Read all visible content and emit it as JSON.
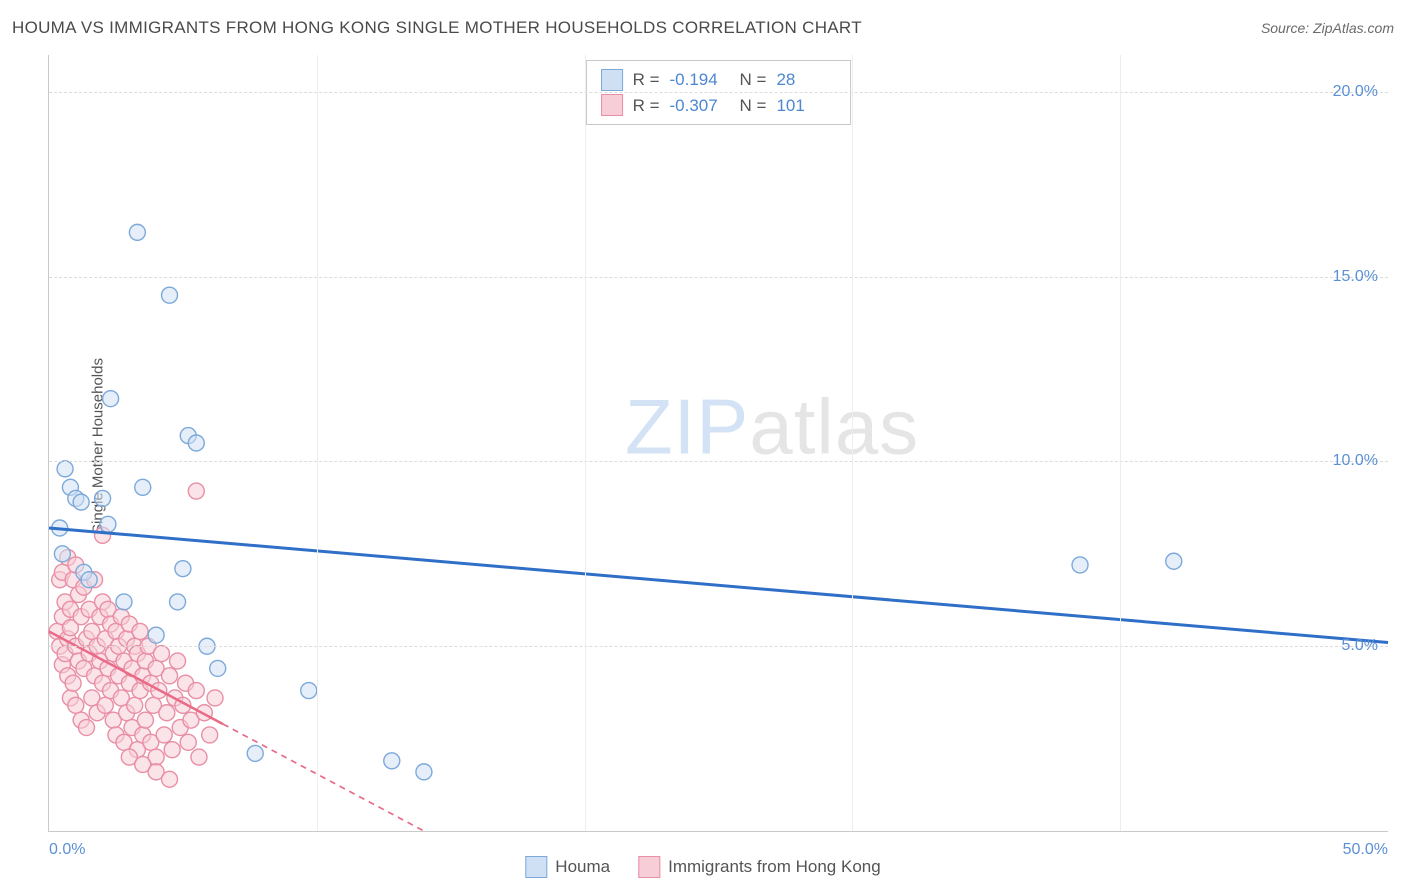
{
  "title": "HOUMA VS IMMIGRANTS FROM HONG KONG SINGLE MOTHER HOUSEHOLDS CORRELATION CHART",
  "source": "Source: ZipAtlas.com",
  "ylabel": "Single Mother Households",
  "watermark_a": "ZIP",
  "watermark_b": "atlas",
  "chart": {
    "type": "scatter",
    "xlim": [
      0,
      50
    ],
    "ylim": [
      0,
      21
    ],
    "yticks": [
      {
        "v": 5,
        "label": "5.0%"
      },
      {
        "v": 10,
        "label": "10.0%"
      },
      {
        "v": 15,
        "label": "15.0%"
      },
      {
        "v": 20,
        "label": "20.0%"
      }
    ],
    "xticks": [
      {
        "v": 0,
        "label": "0.0%",
        "align": "left"
      },
      {
        "v": 50,
        "label": "50.0%",
        "align": "right"
      }
    ],
    "vgrid_x": [
      10,
      20,
      30,
      40
    ],
    "grid_color": "#dcdcdc",
    "background_color": "#ffffff",
    "marker_radius": 8,
    "marker_stroke_width": 1.4,
    "series": [
      {
        "name": "Houma",
        "fill": "#cfe0f4",
        "stroke": "#7da9da",
        "fill_opacity": 0.55,
        "R": "-0.194",
        "N": "28",
        "trend": {
          "x1": 0,
          "y1": 8.2,
          "x2": 50,
          "y2": 5.1,
          "color": "#2f6fc7",
          "width": 3,
          "dash": "none",
          "solid_until_x": 50
        },
        "points": [
          [
            0.4,
            8.2
          ],
          [
            0.5,
            7.5
          ],
          [
            0.6,
            9.8
          ],
          [
            0.8,
            9.3
          ],
          [
            1.0,
            9.0
          ],
          [
            1.2,
            8.9
          ],
          [
            1.3,
            7.0
          ],
          [
            1.5,
            6.8
          ],
          [
            2.0,
            9.0
          ],
          [
            2.2,
            8.3
          ],
          [
            2.3,
            11.7
          ],
          [
            2.8,
            6.2
          ],
          [
            3.3,
            16.2
          ],
          [
            3.5,
            9.3
          ],
          [
            4.0,
            5.3
          ],
          [
            4.5,
            14.5
          ],
          [
            4.8,
            6.2
          ],
          [
            5.0,
            7.1
          ],
          [
            5.2,
            10.7
          ],
          [
            5.5,
            10.5
          ],
          [
            5.9,
            5.0
          ],
          [
            6.3,
            4.4
          ],
          [
            7.7,
            2.1
          ],
          [
            9.7,
            3.8
          ],
          [
            12.8,
            1.9
          ],
          [
            14.0,
            1.6
          ],
          [
            38.5,
            7.2
          ],
          [
            42.0,
            7.3
          ]
        ]
      },
      {
        "name": "Immigrants from Hong Kong",
        "fill": "#f7cdd7",
        "stroke": "#e88fa5",
        "fill_opacity": 0.55,
        "R": "-0.307",
        "N": "101",
        "trend": {
          "x1": 0,
          "y1": 5.4,
          "x2": 14,
          "y2": 0.0,
          "color": "#e86b88",
          "width": 2.5,
          "dash": "6,5",
          "solid_until_x": 6.5
        },
        "points": [
          [
            0.3,
            5.4
          ],
          [
            0.4,
            5.0
          ],
          [
            0.4,
            6.8
          ],
          [
            0.5,
            7.0
          ],
          [
            0.5,
            5.8
          ],
          [
            0.5,
            4.5
          ],
          [
            0.6,
            6.2
          ],
          [
            0.6,
            4.8
          ],
          [
            0.7,
            7.4
          ],
          [
            0.7,
            5.2
          ],
          [
            0.7,
            4.2
          ],
          [
            0.8,
            6.0
          ],
          [
            0.8,
            3.6
          ],
          [
            0.8,
            5.5
          ],
          [
            0.9,
            6.8
          ],
          [
            0.9,
            4.0
          ],
          [
            1.0,
            5.0
          ],
          [
            1.0,
            7.2
          ],
          [
            1.0,
            3.4
          ],
          [
            1.1,
            4.6
          ],
          [
            1.1,
            6.4
          ],
          [
            1.2,
            5.8
          ],
          [
            1.2,
            3.0
          ],
          [
            1.3,
            4.4
          ],
          [
            1.3,
            6.6
          ],
          [
            1.4,
            5.2
          ],
          [
            1.4,
            2.8
          ],
          [
            1.5,
            4.8
          ],
          [
            1.5,
            6.0
          ],
          [
            1.6,
            3.6
          ],
          [
            1.6,
            5.4
          ],
          [
            1.7,
            4.2
          ],
          [
            1.7,
            6.8
          ],
          [
            1.8,
            5.0
          ],
          [
            1.8,
            3.2
          ],
          [
            1.9,
            4.6
          ],
          [
            1.9,
            5.8
          ],
          [
            2.0,
            4.0
          ],
          [
            2.0,
            6.2
          ],
          [
            2.1,
            3.4
          ],
          [
            2.1,
            5.2
          ],
          [
            2.2,
            4.4
          ],
          [
            2.2,
            6.0
          ],
          [
            2.3,
            3.8
          ],
          [
            2.3,
            5.6
          ],
          [
            2.4,
            3.0
          ],
          [
            2.4,
            4.8
          ],
          [
            2.5,
            5.4
          ],
          [
            2.5,
            2.6
          ],
          [
            2.6,
            4.2
          ],
          [
            2.6,
            5.0
          ],
          [
            2.7,
            3.6
          ],
          [
            2.7,
            5.8
          ],
          [
            2.8,
            4.6
          ],
          [
            2.8,
            2.4
          ],
          [
            2.9,
            5.2
          ],
          [
            2.9,
            3.2
          ],
          [
            3.0,
            4.0
          ],
          [
            3.0,
            5.6
          ],
          [
            3.1,
            2.8
          ],
          [
            3.1,
            4.4
          ],
          [
            3.2,
            5.0
          ],
          [
            3.2,
            3.4
          ],
          [
            3.3,
            4.8
          ],
          [
            3.3,
            2.2
          ],
          [
            3.4,
            3.8
          ],
          [
            3.4,
            5.4
          ],
          [
            3.5,
            4.2
          ],
          [
            3.5,
            2.6
          ],
          [
            3.6,
            4.6
          ],
          [
            3.6,
            3.0
          ],
          [
            3.7,
            5.0
          ],
          [
            3.8,
            2.4
          ],
          [
            3.8,
            4.0
          ],
          [
            3.9,
            3.4
          ],
          [
            4.0,
            4.4
          ],
          [
            4.0,
            2.0
          ],
          [
            4.1,
            3.8
          ],
          [
            4.2,
            4.8
          ],
          [
            4.3,
            2.6
          ],
          [
            4.4,
            3.2
          ],
          [
            4.5,
            4.2
          ],
          [
            4.6,
            2.2
          ],
          [
            4.7,
            3.6
          ],
          [
            4.8,
            4.6
          ],
          [
            4.9,
            2.8
          ],
          [
            5.0,
            3.4
          ],
          [
            5.1,
            4.0
          ],
          [
            5.2,
            2.4
          ],
          [
            5.3,
            3.0
          ],
          [
            5.5,
            3.8
          ],
          [
            5.6,
            2.0
          ],
          [
            5.8,
            3.2
          ],
          [
            6.0,
            2.6
          ],
          [
            6.2,
            3.6
          ],
          [
            2.0,
            8.0
          ],
          [
            3.0,
            2.0
          ],
          [
            3.5,
            1.8
          ],
          [
            4.0,
            1.6
          ],
          [
            4.5,
            1.4
          ],
          [
            5.5,
            9.2
          ]
        ]
      }
    ]
  },
  "legend": {
    "series1": "Houma",
    "series2": "Immigrants from Hong Kong"
  },
  "stats_labels": {
    "R": "R  =",
    "N": "N  ="
  }
}
